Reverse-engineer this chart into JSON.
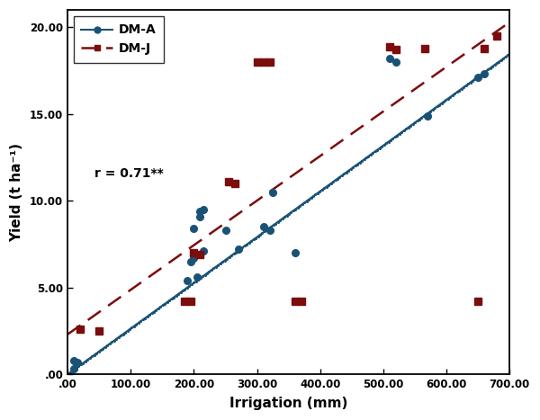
{
  "dma_x": [
    10,
    10,
    15,
    190,
    195,
    200,
    200,
    205,
    210,
    210,
    215,
    215,
    250,
    270,
    310,
    320,
    325,
    360,
    510,
    520,
    570,
    650,
    660
  ],
  "dma_y": [
    0.8,
    0.3,
    0.7,
    5.4,
    6.5,
    6.7,
    8.4,
    5.6,
    9.1,
    9.4,
    9.5,
    7.1,
    8.3,
    7.2,
    8.5,
    8.3,
    10.5,
    7.0,
    18.2,
    18.0,
    14.9,
    17.1,
    17.3
  ],
  "dmj_x": [
    20,
    50,
    185,
    195,
    200,
    210,
    255,
    265,
    300,
    310,
    320,
    360,
    370,
    510,
    520,
    565,
    650,
    660,
    680
  ],
  "dmj_y": [
    2.6,
    2.5,
    4.2,
    4.2,
    7.0,
    6.9,
    11.1,
    11.0,
    18.0,
    18.0,
    18.0,
    4.2,
    4.2,
    18.9,
    18.7,
    18.8,
    4.2,
    18.8,
    19.5
  ],
  "dma_color": "#1a5276",
  "dmj_color": "#7b0d0d",
  "xlabel": "Irrigation (mm)",
  "ylabel": "Yield (t ha⁻¹)",
  "annotation": "r = 0.71**",
  "xlim": [
    0,
    700
  ],
  "ylim": [
    0,
    21
  ],
  "xticks": [
    0,
    100,
    200,
    300,
    400,
    500,
    600,
    700
  ],
  "yticks": [
    0,
    5,
    10,
    15,
    20
  ],
  "xticklabels": [
    ".00",
    "100.00",
    "200.00",
    "300.00",
    "400.00",
    "500.00",
    "600.00",
    "700.00"
  ],
  "yticklabels": [
    ".00",
    "5.00",
    "10.00",
    "15.00",
    "20.00"
  ],
  "dma_line_slope": 0.02638,
  "dma_line_intercept": 0.0,
  "dmj_line_slope": 0.02571,
  "dmj_line_intercept": 2.3
}
